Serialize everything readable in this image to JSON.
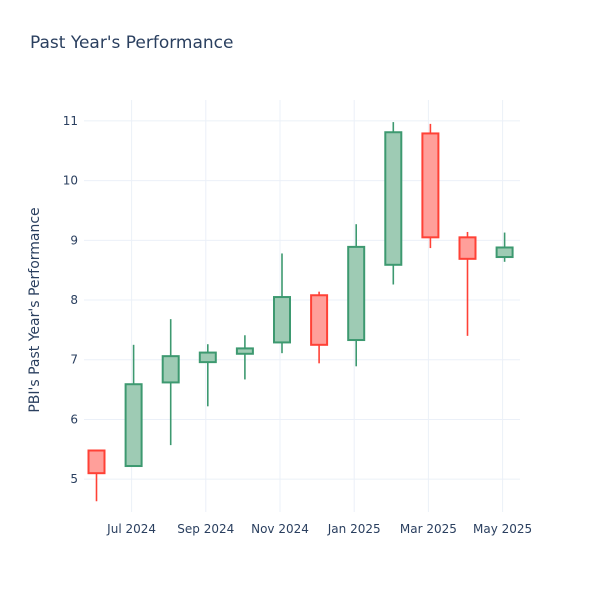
{
  "chart_data": {
    "type": "candlestick",
    "title": "Past Year's Performance",
    "ylabel": "PBI's Past Year's Performance",
    "xlabel": "",
    "ylim": [
      4.45,
      11.35
    ],
    "yticks": [
      5,
      6,
      7,
      8,
      9,
      10,
      11
    ],
    "grid": true,
    "xticks": [
      {
        "label": "Jul 2024",
        "index": 1
      },
      {
        "label": "Sep 2024",
        "index": 3
      },
      {
        "label": "Nov 2024",
        "index": 5
      },
      {
        "label": "Jan 2025",
        "index": 7
      },
      {
        "label": "Mar 2025",
        "index": 9
      },
      {
        "label": "May 2025",
        "index": 11
      }
    ],
    "colors": {
      "increasing_line": "#3d9970",
      "increasing_fill": "#9ecbb4",
      "decreasing_line": "#ff4136",
      "decreasing_fill": "#ff9f9a"
    },
    "candles": [
      {
        "month": "2024-06",
        "open": 5.48,
        "high": 5.48,
        "low": 4.63,
        "close": 5.1
      },
      {
        "month": "2024-07",
        "open": 5.22,
        "high": 7.25,
        "low": 5.22,
        "close": 6.59
      },
      {
        "month": "2024-08",
        "open": 6.62,
        "high": 7.68,
        "low": 5.57,
        "close": 7.06
      },
      {
        "month": "2024-09",
        "open": 6.96,
        "high": 7.26,
        "low": 6.22,
        "close": 7.12
      },
      {
        "month": "2024-10",
        "open": 7.1,
        "high": 7.41,
        "low": 6.67,
        "close": 7.19
      },
      {
        "month": "2024-11",
        "open": 7.29,
        "high": 8.78,
        "low": 7.11,
        "close": 8.05
      },
      {
        "month": "2024-12",
        "open": 8.08,
        "high": 8.14,
        "low": 6.94,
        "close": 7.25
      },
      {
        "month": "2025-01",
        "open": 7.33,
        "high": 9.27,
        "low": 6.89,
        "close": 8.89
      },
      {
        "month": "2025-02",
        "open": 8.59,
        "high": 10.98,
        "low": 8.26,
        "close": 10.81
      },
      {
        "month": "2025-03",
        "open": 10.79,
        "high": 10.95,
        "low": 8.87,
        "close": 9.05
      },
      {
        "month": "2025-04",
        "open": 9.05,
        "high": 9.14,
        "low": 7.4,
        "close": 8.69
      },
      {
        "month": "2025-05",
        "open": 8.72,
        "high": 9.13,
        "low": 8.64,
        "close": 8.88
      }
    ]
  }
}
